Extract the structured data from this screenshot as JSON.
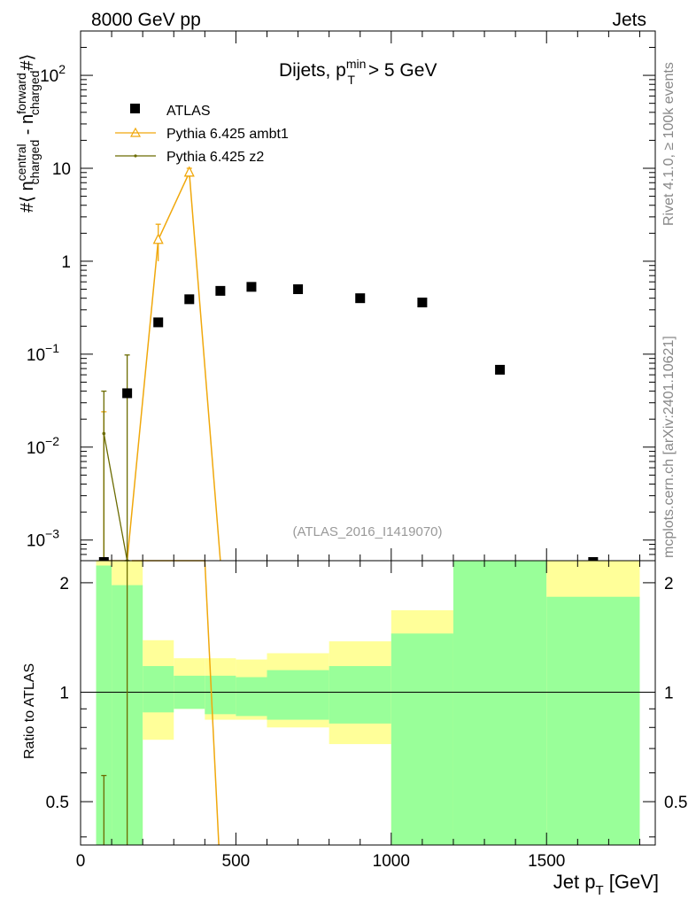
{
  "header": {
    "left": "8000 GeV pp",
    "right": "Jets"
  },
  "side_labels": {
    "rivet": "Rivet 4.1.0, ≥ 100k events",
    "mcplots": "mcplots.cern.ch [arXiv:2401.10621]"
  },
  "colors": {
    "atlas": "#000000",
    "ambt1": "#f0a80c",
    "z2": "#6b6b00",
    "band_inner": "#99ff99",
    "band_outer": "#ffff99",
    "watermark": "#999999"
  },
  "chart_data": {
    "type": "scatter",
    "title": "Dijets, p_T^min > 5 GeV",
    "title_parts": {
      "pre": "Dijets, p",
      "sup": "min",
      "sub": "T",
      "post": " > 5 GeV"
    },
    "analysis_label": "(ATLAS_2016_I1419070)",
    "xlabel": "Jet p_T [GeV]",
    "xlabel_parts": {
      "pre": "Jet p",
      "sub": "T",
      "post": " [GeV]"
    },
    "ylabel": "#⟨ n_charged^central - n_charged^forward #⟩",
    "ylabel_parts": {
      "a": "#⟨ n",
      "sup1": "central",
      "sub1": "charged",
      "b": " - n",
      "sup2": "forward",
      "sub2": "charged",
      "c": "#⟩"
    },
    "xlim": [
      0,
      1850
    ],
    "ylim": [
      0.0006,
      300
    ],
    "yscale": "log",
    "x_ticks": [
      "0",
      "500",
      "1000",
      "1500"
    ],
    "y_ticks": [
      {
        "label": "10",
        "exp": "2",
        "value": 100
      },
      {
        "label": "10",
        "exp": "",
        "value": 10
      },
      {
        "label": "1",
        "exp": "",
        "value": 1
      },
      {
        "label": "10",
        "exp": "−1",
        "value": 0.1
      },
      {
        "label": "10",
        "exp": "−2",
        "value": 0.01
      },
      {
        "label": "10",
        "exp": "−3",
        "value": 0.001
      }
    ],
    "legend": [
      {
        "name": "ATLAS",
        "marker": "square"
      },
      {
        "name": "Pythia 6.425 ambt1",
        "marker": "triangle"
      },
      {
        "name": "Pythia 6.425 z2",
        "marker": "dot"
      }
    ],
    "series": [
      {
        "name": "ATLAS",
        "bins": [
          [
            50,
            100
          ],
          [
            100,
            200
          ],
          [
            200,
            300
          ],
          [
            300,
            400
          ],
          [
            400,
            500
          ],
          [
            500,
            600
          ],
          [
            600,
            800
          ],
          [
            800,
            1000
          ],
          [
            1000,
            1200
          ],
          [
            1200,
            1500
          ],
          [
            1500,
            1800
          ]
        ],
        "x": [
          75,
          150,
          250,
          350,
          450,
          550,
          700,
          900,
          1100,
          1350,
          1650
        ],
        "y": [
          0.0006,
          0.038,
          0.22,
          0.39,
          0.48,
          0.53,
          0.5,
          0.4,
          0.36,
          0.068,
          0.0006
        ]
      },
      {
        "name": "Pythia 6.425 ambt1",
        "x": [
          75,
          150,
          250,
          350,
          450
        ],
        "y": [
          0.0006,
          0.0006,
          1.7,
          9.0,
          0.0006
        ],
        "err_lo": [
          0.0006,
          0.0006,
          1.0,
          8.0,
          0.0006
        ],
        "err_hi": [
          0.024,
          0.0006,
          2.5,
          10.0,
          0.0006
        ]
      },
      {
        "name": "Pythia 6.425 z2",
        "x": [
          75,
          150
        ],
        "y": [
          0.014,
          0.0006
        ],
        "err_lo": [
          0.0006,
          0.0006
        ],
        "err_hi": [
          0.04,
          0.098
        ]
      }
    ],
    "ratio": {
      "ylabel": "Ratio to ATLAS",
      "ylim": [
        0.38,
        2.3
      ],
      "y_ticks": [
        {
          "label": "2",
          "value": 2
        },
        {
          "label": "1",
          "value": 1
        },
        {
          "label": "0.5",
          "value": 0.5
        }
      ],
      "band_inner_hi": [
        2.23,
        1.97,
        1.18,
        1.11,
        1.11,
        1.1,
        1.15,
        1.18,
        1.45,
        2.3,
        1.83
      ],
      "band_inner_lo": [
        0.38,
        0.38,
        0.88,
        0.9,
        0.87,
        0.86,
        0.84,
        0.82,
        0.38,
        0.38,
        0.38
      ],
      "band_outer_hi": [
        2.3,
        2.3,
        1.39,
        1.24,
        1.24,
        1.23,
        1.28,
        1.38,
        1.68,
        2.3,
        2.3
      ],
      "band_outer_lo": [
        0.38,
        0.38,
        0.74,
        0.9,
        0.84,
        0.84,
        0.8,
        0.72,
        0.38,
        0.38,
        0.38
      ],
      "ambt1_x": [
        165,
        400,
        445
      ],
      "ambt1_y": [
        2.3,
        2.3,
        0.38
      ],
      "z2_markers": [
        {
          "x": 75,
          "y_top": 0.59,
          "y_bottom": 0.38
        },
        {
          "x": 150,
          "y_top": 2.3,
          "y_bottom": 0.38
        }
      ]
    }
  }
}
